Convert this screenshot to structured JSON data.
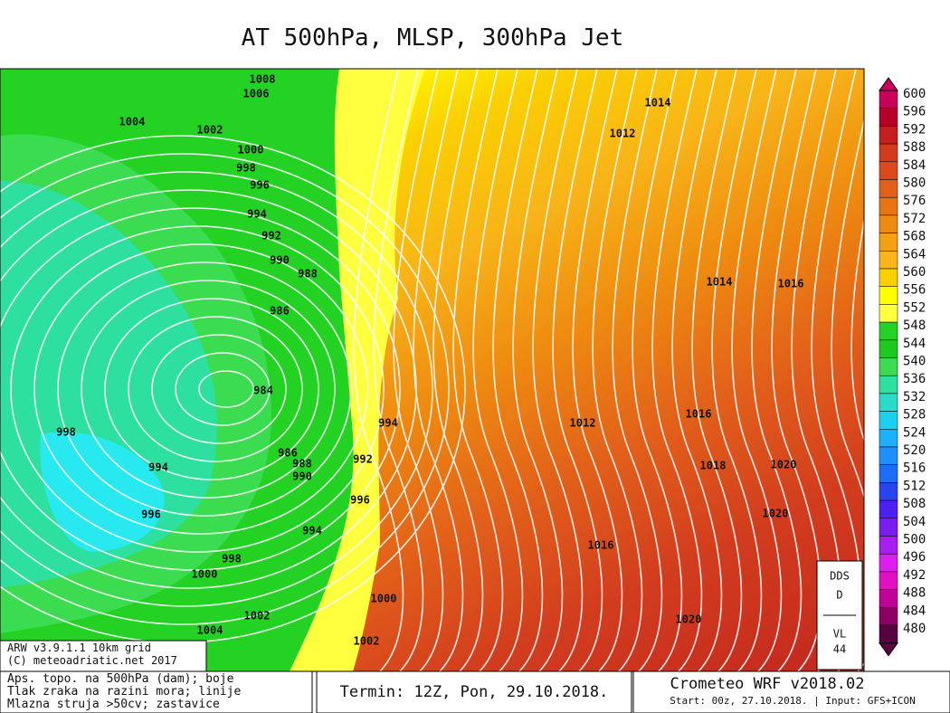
{
  "header": {
    "title": "AT 500hPa, MLSP, 300hPa Jet"
  },
  "map": {
    "isobar_labels": [
      "1008",
      "1006",
      "1004",
      "1002",
      "1000",
      "998",
      "996",
      "994",
      "992",
      "990",
      "988",
      "986",
      "984",
      "986",
      "988",
      "990",
      "994",
      "998",
      "996",
      "998",
      "1000",
      "1002",
      "1004",
      "1002",
      "1000",
      "996",
      "992",
      "994",
      "994",
      "1014",
      "1012",
      "1014",
      "1016",
      "1012",
      "1016",
      "1018",
      "1020",
      "1020",
      "1016",
      "1020"
    ]
  },
  "legend": {
    "levels": [
      "600",
      "596",
      "592",
      "588",
      "584",
      "580",
      "576",
      "572",
      "568",
      "564",
      "560",
      "556",
      "552",
      "548",
      "544",
      "540",
      "536",
      "532",
      "528",
      "524",
      "520",
      "516",
      "512",
      "508",
      "504",
      "500",
      "496",
      "492",
      "488",
      "484",
      "480"
    ],
    "colors": [
      "#c8005a",
      "#b40028",
      "#c41e1e",
      "#d23c1e",
      "#dc4a1c",
      "#e2601a",
      "#e87414",
      "#ee8a10",
      "#f4a012",
      "#f8b418",
      "#fad000",
      "#ffff00",
      "#ffff40",
      "#24d224",
      "#1ec81e",
      "#3cdc50",
      "#2ee0a0",
      "#28dcc8",
      "#1ed0f0",
      "#1eb0fa",
      "#1e90fa",
      "#1e6cfa",
      "#2844f0",
      "#4c20f0",
      "#7a1ef0",
      "#a81ef0",
      "#dc1ef0",
      "#e010c4",
      "#c00096",
      "#8c0064",
      "#5a0040"
    ]
  },
  "info_box": {
    "lines": [
      "DDS",
      "D",
      "VL",
      "44"
    ]
  },
  "footer": {
    "model": "ARW v3.9.1.1 10km grid",
    "copyright": "(C) meteoadriatic.net 2017",
    "description": [
      "Aps. topo. na 500hPa (dam); boje",
      "Tlak zraka na razini mora; linije",
      "Mlazna struja >50cv; zastavice"
    ],
    "term": "Termin: 12Z, Pon, 29.10.2018.",
    "brand": "Crometeo WRF v2018.02",
    "start": "Start: 00z, 27.10.2018. | Input: GFS+ICON"
  }
}
